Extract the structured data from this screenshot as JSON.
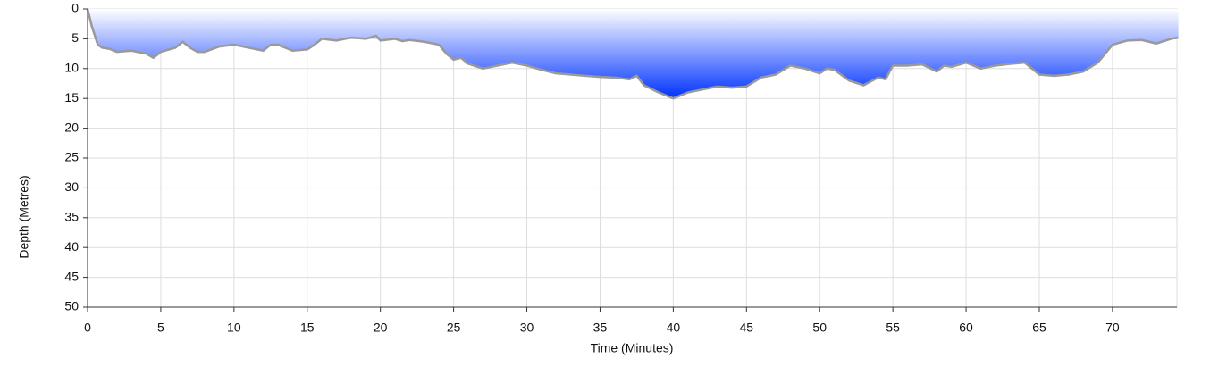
{
  "chart_data": {
    "type": "area",
    "x_label": "Time (Minutes)",
    "y_label": "Depth (Metres)",
    "x": [
      0,
      0.3,
      0.7,
      1,
      1.5,
      2,
      3,
      4,
      4.5,
      5,
      6,
      6.5,
      7,
      7.5,
      8,
      9,
      10,
      11,
      12,
      12.5,
      13,
      14,
      15,
      15.5,
      16,
      17,
      18,
      19,
      19.7,
      20,
      21,
      21.5,
      22,
      23,
      24,
      24.5,
      25,
      25.5,
      26,
      27,
      28,
      29,
      30,
      31,
      32,
      33,
      34,
      35,
      36,
      37,
      37.5,
      38,
      39,
      40,
      41,
      42,
      43,
      44,
      45,
      46,
      47,
      48,
      49,
      50,
      50.5,
      51,
      52,
      53,
      54,
      54.5,
      55,
      56,
      57,
      58,
      58.5,
      59,
      60,
      61,
      62,
      63,
      64,
      65,
      66,
      67,
      68,
      69,
      70,
      71,
      72,
      73,
      74,
      74.5
    ],
    "values": [
      0,
      3,
      6,
      6.5,
      6.7,
      7.2,
      7,
      7.5,
      8.2,
      7.2,
      6.5,
      5.5,
      6.5,
      7.2,
      7.2,
      6.3,
      6,
      6.5,
      7,
      6,
      6,
      7,
      6.8,
      6,
      5,
      5.3,
      4.8,
      5,
      4.5,
      5.3,
      5,
      5.4,
      5.2,
      5.5,
      6,
      7.5,
      8.5,
      8.2,
      9.2,
      10,
      9.5,
      9,
      9.5,
      10.2,
      10.8,
      11,
      11.2,
      11.4,
      11.5,
      11.8,
      11.2,
      12.8,
      14,
      15,
      14,
      13.5,
      13,
      13.2,
      13,
      11.5,
      11,
      9.5,
      10,
      10.8,
      10,
      10.2,
      12,
      12.8,
      11.5,
      11.8,
      9.5,
      9.5,
      9.3,
      10.5,
      9.5,
      9.7,
      9,
      10,
      9.5,
      9.2,
      9,
      11,
      11.2,
      11,
      10.5,
      9,
      6,
      5.3,
      5.2,
      5.8,
      5,
      4.8
    ],
    "xlim": [
      0,
      74.4
    ],
    "ylim": [
      0,
      50
    ],
    "xticks": [
      0,
      5,
      10,
      15,
      20,
      25,
      30,
      35,
      40,
      45,
      50,
      55,
      60,
      65,
      70
    ],
    "yticks": [
      0,
      5,
      10,
      15,
      20,
      25,
      30,
      35,
      40,
      45,
      50
    ],
    "y_inverted": true,
    "grid": true,
    "color": "#0033ff",
    "line_color": "#999999"
  }
}
